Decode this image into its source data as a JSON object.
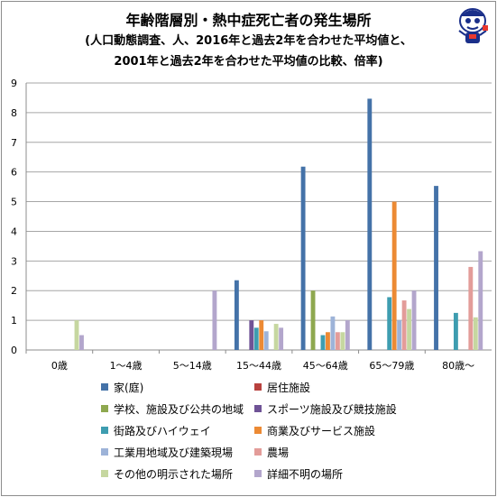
{
  "title_lines": [
    "年齢階層別・熱中症死亡者の発生場所",
    "(人口動態調査、人、2016年と過去2年を合わせた平均値と、",
    "2001年と過去2年を合わせた平均値の比較、倍率)"
  ],
  "chart_data": {
    "type": "bar",
    "categories": [
      "0歳",
      "1～4歳",
      "5～14歳",
      "15～44歳",
      "45～64歳",
      "65～79歳",
      "80歳～"
    ],
    "ylim": [
      0,
      9
    ],
    "yticks": [
      0,
      1,
      2,
      3,
      4,
      5,
      6,
      7,
      8,
      9
    ],
    "grid": true,
    "legend_position": "bottom",
    "series": [
      {
        "name": "家(庭)",
        "color": "#4472a8",
        "values": [
          null,
          null,
          null,
          2.35,
          6.18,
          8.47,
          5.53
        ]
      },
      {
        "name": "居住施設",
        "color": "#b8413e",
        "values": [
          null,
          null,
          null,
          null,
          null,
          null,
          null
        ]
      },
      {
        "name": "学校、施設及び公共の地域",
        "color": "#8ea84f",
        "values": [
          null,
          null,
          null,
          null,
          2.0,
          null,
          null
        ]
      },
      {
        "name": "スポーツ施設及び競技施設",
        "color": "#6f5396",
        "values": [
          null,
          null,
          null,
          1.0,
          null,
          null,
          null
        ]
      },
      {
        "name": "街路及びハイウェイ",
        "color": "#3e9db0",
        "values": [
          null,
          null,
          null,
          0.75,
          0.5,
          1.78,
          1.25
        ]
      },
      {
        "name": "商業及びサービス施設",
        "color": "#ec8a34",
        "values": [
          null,
          null,
          null,
          1.0,
          0.6,
          5.0,
          null
        ]
      },
      {
        "name": "工業用地域及び建築現場",
        "color": "#9db3d8",
        "values": [
          null,
          null,
          null,
          0.63,
          1.13,
          1.0,
          null
        ]
      },
      {
        "name": "農場",
        "color": "#e39c99",
        "values": [
          null,
          null,
          null,
          null,
          0.6,
          1.67,
          2.8
        ]
      },
      {
        "name": "その他の明示された場所",
        "color": "#c6d7a0",
        "values": [
          1.0,
          null,
          null,
          0.88,
          0.6,
          1.38,
          1.1
        ]
      },
      {
        "name": "詳細不明の場所",
        "color": "#b3a6cc",
        "values": [
          0.5,
          null,
          2.0,
          0.75,
          1.0,
          2.0,
          3.33
        ]
      }
    ]
  }
}
